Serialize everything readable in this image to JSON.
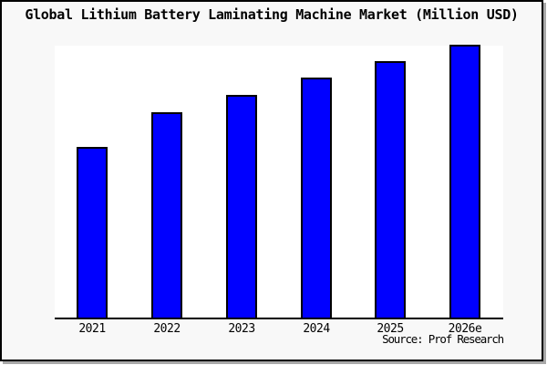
{
  "chart": {
    "title": "Global Lithium Battery Laminating Machine Market (Million USD)",
    "source": "Source: Prof Research"
  },
  "chart_data": {
    "type": "bar",
    "title": "Global Lithium Battery Laminating Machine Market (Million USD)",
    "categories": [
      "2021",
      "2022",
      "2023",
      "2024",
      "2025",
      "2026e"
    ],
    "values": [
      62.7,
      75.2,
      81.6,
      88,
      94,
      100
    ],
    "values_note": "y-axis has no tick labels; values are relative bar heights with 2026e = 100",
    "unit": "Million USD",
    "xlabel": "",
    "ylabel": "",
    "ylim": [
      0,
      105
    ],
    "grid": false,
    "legend": "none",
    "bar_color": "#0000ff",
    "bar_border_color": "#000000",
    "background_color": "#f8f8f8",
    "plot_background_color": "#ffffff",
    "annotations": [
      "Source: Prof Research"
    ]
  }
}
